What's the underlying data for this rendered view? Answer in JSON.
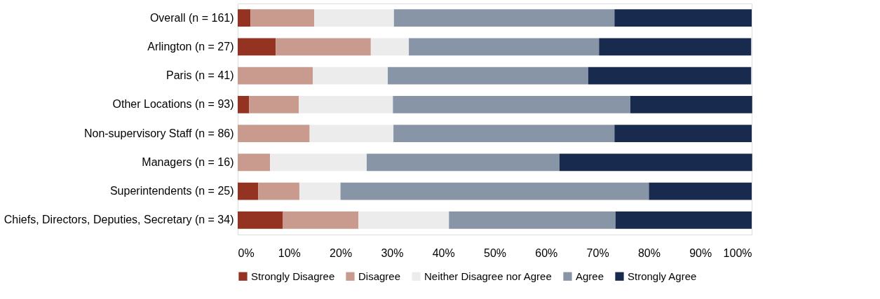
{
  "chart_data": {
    "type": "bar",
    "orientation": "horizontal",
    "stacked": true,
    "categories": [
      "Overall (n = 161)",
      "Arlington (n = 27)",
      "Paris (n = 41)",
      "Other Locations (n = 93)",
      "Non-supervisory Staff (n = 86)",
      "Managers (n = 16)",
      "Superintendents (n = 25)",
      "Chiefs, Directors, Deputies, Secretary (n = 34)"
    ],
    "series": [
      {
        "name": "Strongly Disagree",
        "color": "#943321",
        "values": [
          2.5,
          7.4,
          0,
          2.2,
          0,
          0,
          4,
          8.8
        ]
      },
      {
        "name": "Disagree",
        "color": "#c99a8e",
        "values": [
          12.4,
          18.5,
          14.6,
          9.7,
          14,
          6.3,
          8,
          14.7
        ]
      },
      {
        "name": "Neither Disagree nor Agree",
        "color": "#ececec",
        "values": [
          15.5,
          7.4,
          14.6,
          18.3,
          16.3,
          18.8,
          8,
          17.6
        ]
      },
      {
        "name": "Agree",
        "color": "#8895a7",
        "values": [
          42.9,
          37,
          39,
          46.2,
          43,
          37.5,
          60,
          32.4
        ]
      },
      {
        "name": "Strongly Agree",
        "color": "#182a4e",
        "values": [
          26.7,
          29.6,
          31.7,
          23.7,
          26.7,
          37.5,
          20,
          26.5
        ]
      }
    ],
    "xlim": [
      0,
      100
    ],
    "xticks": [
      {
        "value": 0,
        "label": "0%"
      },
      {
        "value": 10,
        "label": "10%"
      },
      {
        "value": 20,
        "label": "20%"
      },
      {
        "value": 30,
        "label": "30%"
      },
      {
        "value": 40,
        "label": "40%"
      },
      {
        "value": 50,
        "label": "50%"
      },
      {
        "value": 60,
        "label": "60%"
      },
      {
        "value": 70,
        "label": "70%"
      },
      {
        "value": 80,
        "label": "80%"
      },
      {
        "value": 90,
        "label": "90%"
      },
      {
        "value": 100,
        "label": "100%"
      }
    ],
    "grid": false,
    "legend": "bottom"
  }
}
